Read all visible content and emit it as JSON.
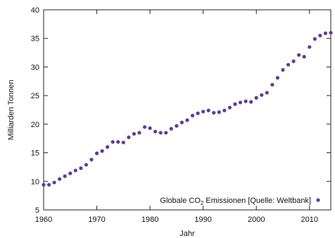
{
  "chart_data": {
    "type": "scatter",
    "xlabel": "Jahr",
    "ylabel": "Milliarden Tonnen",
    "xlim": [
      1960,
      2014
    ],
    "ylim": [
      5,
      40
    ],
    "x_ticks": [
      1960,
      1970,
      1980,
      1990,
      2000,
      2010
    ],
    "y_ticks": [
      5,
      10,
      15,
      20,
      25,
      30,
      35,
      40
    ],
    "grid": false,
    "legend_position": "bottom-right",
    "color": "#5a3d9a",
    "series": [
      {
        "name_parts": {
          "before": "Globale CO",
          "subscript": "2",
          "after": " Emissionen [Quelle: Weltbank]"
        },
        "x": [
          1960,
          1961,
          1962,
          1963,
          1964,
          1965,
          1966,
          1967,
          1968,
          1969,
          1970,
          1971,
          1972,
          1973,
          1974,
          1975,
          1976,
          1977,
          1978,
          1979,
          1980,
          1981,
          1982,
          1983,
          1984,
          1985,
          1986,
          1987,
          1988,
          1989,
          1990,
          1991,
          1992,
          1993,
          1994,
          1995,
          1996,
          1997,
          1998,
          1999,
          2000,
          2001,
          2002,
          2003,
          2004,
          2005,
          2006,
          2007,
          2008,
          2009,
          2010,
          2011,
          2012,
          2013,
          2014
        ],
        "y": [
          9.4,
          9.4,
          9.8,
          10.4,
          10.9,
          11.4,
          11.9,
          12.3,
          12.9,
          13.8,
          14.9,
          15.3,
          16.0,
          16.9,
          16.9,
          16.8,
          17.7,
          18.3,
          18.5,
          19.5,
          19.3,
          18.7,
          18.5,
          18.5,
          19.2,
          19.7,
          20.3,
          20.7,
          21.5,
          21.9,
          22.2,
          22.4,
          22.0,
          22.1,
          22.4,
          22.9,
          23.5,
          23.8,
          24.0,
          23.9,
          24.6,
          25.1,
          25.5,
          26.9,
          28.1,
          29.5,
          30.4,
          31.0,
          32.1,
          31.8,
          33.5,
          34.9,
          35.5,
          35.9,
          36.0
        ]
      }
    ]
  }
}
